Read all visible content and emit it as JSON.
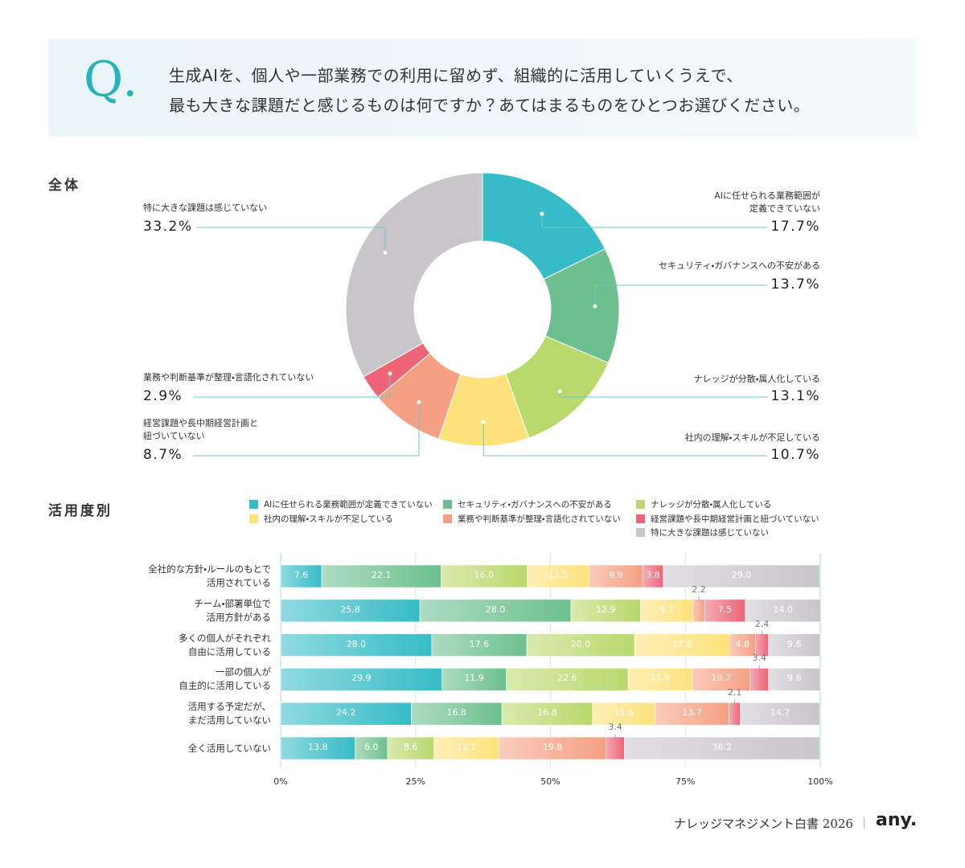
{
  "header": {
    "mark": "Q.",
    "question": [
      "生成AIを、個人や一部業務での利用に留めず、組織的に活用していくうえで、",
      "最も大きな課題だと感じるものは何ですか？あてはまるものをひとつお選びください。"
    ]
  },
  "chart_data": [
    {
      "type": "pie",
      "donut": true,
      "title": "全体",
      "categories": [
        "AIに任せられる業務範囲が\n定義できていない",
        "セキュリティ・ガバナンスへの不安がある",
        "ナレッジが分散・属人化している",
        "社内の理解・スキルが不足している",
        "経営課題や長中期経営計画と\n紐づいていない",
        "業務や判断基準が整理・言語化されていない",
        "特に大きな課題は感じていない"
      ],
      "values": [
        17.7,
        13.7,
        13.1,
        10.7,
        8.7,
        2.9,
        33.2
      ],
      "value_labels": [
        "17.7%",
        "13.7%",
        "13.1%",
        "10.7%",
        "8.7%",
        "2.9%",
        "33.2%"
      ],
      "colors": [
        "#36bcc6",
        "#6cc08e",
        "#b9d96c",
        "#fde27c",
        "#f5a083",
        "#ec6476",
        "#c8c5cb"
      ]
    },
    {
      "type": "stacked_bar",
      "orientation": "horizontal",
      "title": "活用度別",
      "categories": [
        "全社的な方針・ルールのもとで\n活用されている",
        "チーム・部署単位で\n活用方針がある",
        "多くの個人がそれぞれ\n自由に活用している",
        "一部の個人が\n自主的に活用している",
        "活用する予定だが、\nまだ活用していない",
        "全く活用していない"
      ],
      "series": [
        {
          "name": "AIに任せられる業務範囲が定義できていない",
          "color": "#36bcc6",
          "values": [
            7.6,
            25.8,
            28.0,
            29.9,
            24.2,
            13.8
          ],
          "value_labels": [
            "7.6",
            "25.8",
            "28.0",
            "29.9",
            "24.2",
            "13.8"
          ]
        },
        {
          "name": "セキュリティ・ガバナンスへの不安がある",
          "color": "#6cc08e",
          "values": [
            22.1,
            28.0,
            17.6,
            11.9,
            16.8,
            6.0
          ],
          "value_labels": [
            "22.1",
            "28.0",
            "17.6",
            "11.9",
            "16.8",
            "6.0"
          ]
        },
        {
          "name": "ナレッジが分散・属人化している",
          "color": "#b9d96c",
          "values": [
            16.0,
            12.9,
            20.0,
            22.6,
            16.8,
            8.6
          ],
          "value_labels": [
            "16.0",
            "12.9",
            "20.0",
            "22.6",
            "16.8",
            "8.6"
          ]
        },
        {
          "name": "社内の理解・スキルが不足している",
          "color": "#fde27c",
          "values": [
            11.5,
            9.7,
            17.6,
            11.9,
            11.6,
            12.1
          ],
          "value_labels": [
            "11.5",
            "9.7",
            "17.6",
            "11.9",
            "11.6",
            "12.1"
          ]
        },
        {
          "name": "業務や判断基準が整理・言語化されていない",
          "color": "#f5a083",
          "values": [
            9.9,
            2.2,
            4.8,
            10.7,
            13.7,
            19.8
          ],
          "value_labels": [
            "9.9",
            "2.2",
            "4.8",
            "10.7",
            "13.7",
            "19.8"
          ]
        },
        {
          "name": "経営課題や長中期経営計画と紐づいていない",
          "color": "#ec6476",
          "values": [
            3.8,
            7.5,
            2.4,
            3.4,
            2.1,
            3.4
          ],
          "value_labels": [
            "3.8",
            "7.5",
            "2.4",
            "3.4",
            "2.1",
            "3.4"
          ]
        },
        {
          "name": "特に大きな課題は感じていない",
          "color": "#c8c5cb",
          "values": [
            29.0,
            14.0,
            9.6,
            9.6,
            14.7,
            36.2
          ],
          "value_labels": [
            "29.0",
            "14.0",
            "9.6",
            "9.6",
            "14.7",
            "36.2"
          ]
        }
      ],
      "xlim": [
        0,
        100
      ],
      "xticks": [
        {
          "value": 0,
          "label": "0%"
        },
        {
          "value": 25,
          "label": "25%"
        },
        {
          "value": 50,
          "label": "50%"
        },
        {
          "value": 75,
          "label": "75%"
        },
        {
          "value": 100,
          "label": "100%"
        }
      ],
      "grid": true
    }
  ],
  "footer": {
    "publication": "ナレッジマネジメント白書 2026",
    "brand": "any."
  }
}
